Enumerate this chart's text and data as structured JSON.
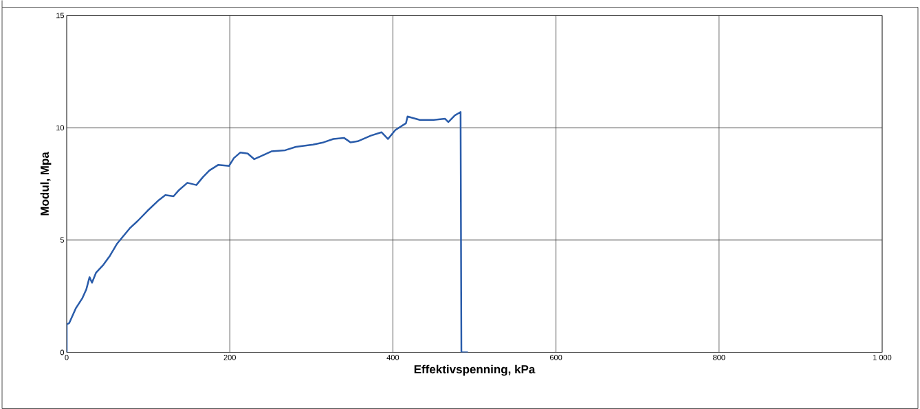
{
  "chart_data": {
    "type": "line",
    "xlabel": "Effektivspenning, kPa",
    "ylabel": "Modul, Mpa",
    "xlim": [
      0,
      1000
    ],
    "ylim": [
      0,
      15
    ],
    "xticks": [
      0,
      200,
      400,
      600,
      800,
      {
        "value": 1000,
        "label": "1 000"
      }
    ],
    "yticks": [
      0,
      5,
      10,
      15
    ],
    "grid": true,
    "series": [
      {
        "color": "#2a5caa",
        "x": [
          0,
          0,
          3,
          11,
          19,
          24,
          28,
          31,
          36,
          45,
          53,
          62,
          70,
          78,
          87,
          99,
          112,
          121,
          131,
          137,
          148,
          159,
          167,
          175,
          186,
          199,
          205,
          213,
          222,
          230,
          239,
          251,
          268,
          281,
          302,
          315,
          327,
          340,
          348,
          357,
          373,
          386,
          394,
          403,
          416,
          418,
          433,
          450,
          464,
          468,
          476,
          483,
          484,
          492
        ],
        "values": [
          0,
          1.25,
          1.3,
          1.95,
          2.4,
          2.8,
          3.35,
          3.1,
          3.55,
          3.9,
          4.3,
          4.85,
          5.2,
          5.55,
          5.85,
          6.3,
          6.75,
          7.0,
          6.95,
          7.2,
          7.55,
          7.45,
          7.8,
          8.1,
          8.35,
          8.3,
          8.65,
          8.9,
          8.85,
          8.6,
          8.75,
          8.95,
          9.0,
          9.15,
          9.25,
          9.35,
          9.5,
          9.55,
          9.35,
          9.4,
          9.65,
          9.8,
          9.5,
          9.9,
          10.2,
          10.5,
          10.35,
          10.35,
          10.4,
          10.25,
          10.55,
          10.7,
          0,
          0
        ]
      }
    ]
  }
}
